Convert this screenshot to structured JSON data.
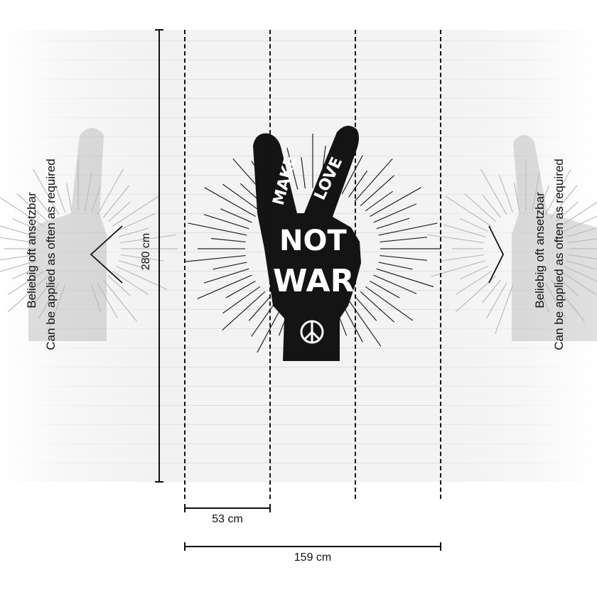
{
  "artwork": {
    "finger_left_text": "MAKE",
    "finger_right_text": "LOVE",
    "line1": "NOT",
    "line2": "WAR",
    "symbol": "peace-sign-icon"
  },
  "dimensions": {
    "height": "280 cm",
    "panel_width": "53 cm",
    "total_width": "159 cm"
  },
  "repeat_note": {
    "de": "Beliebig oft ansetzbar",
    "en": "Can be applied as often as required"
  },
  "colors": {
    "ink": "#111111",
    "wall": "#f1f1f1"
  }
}
